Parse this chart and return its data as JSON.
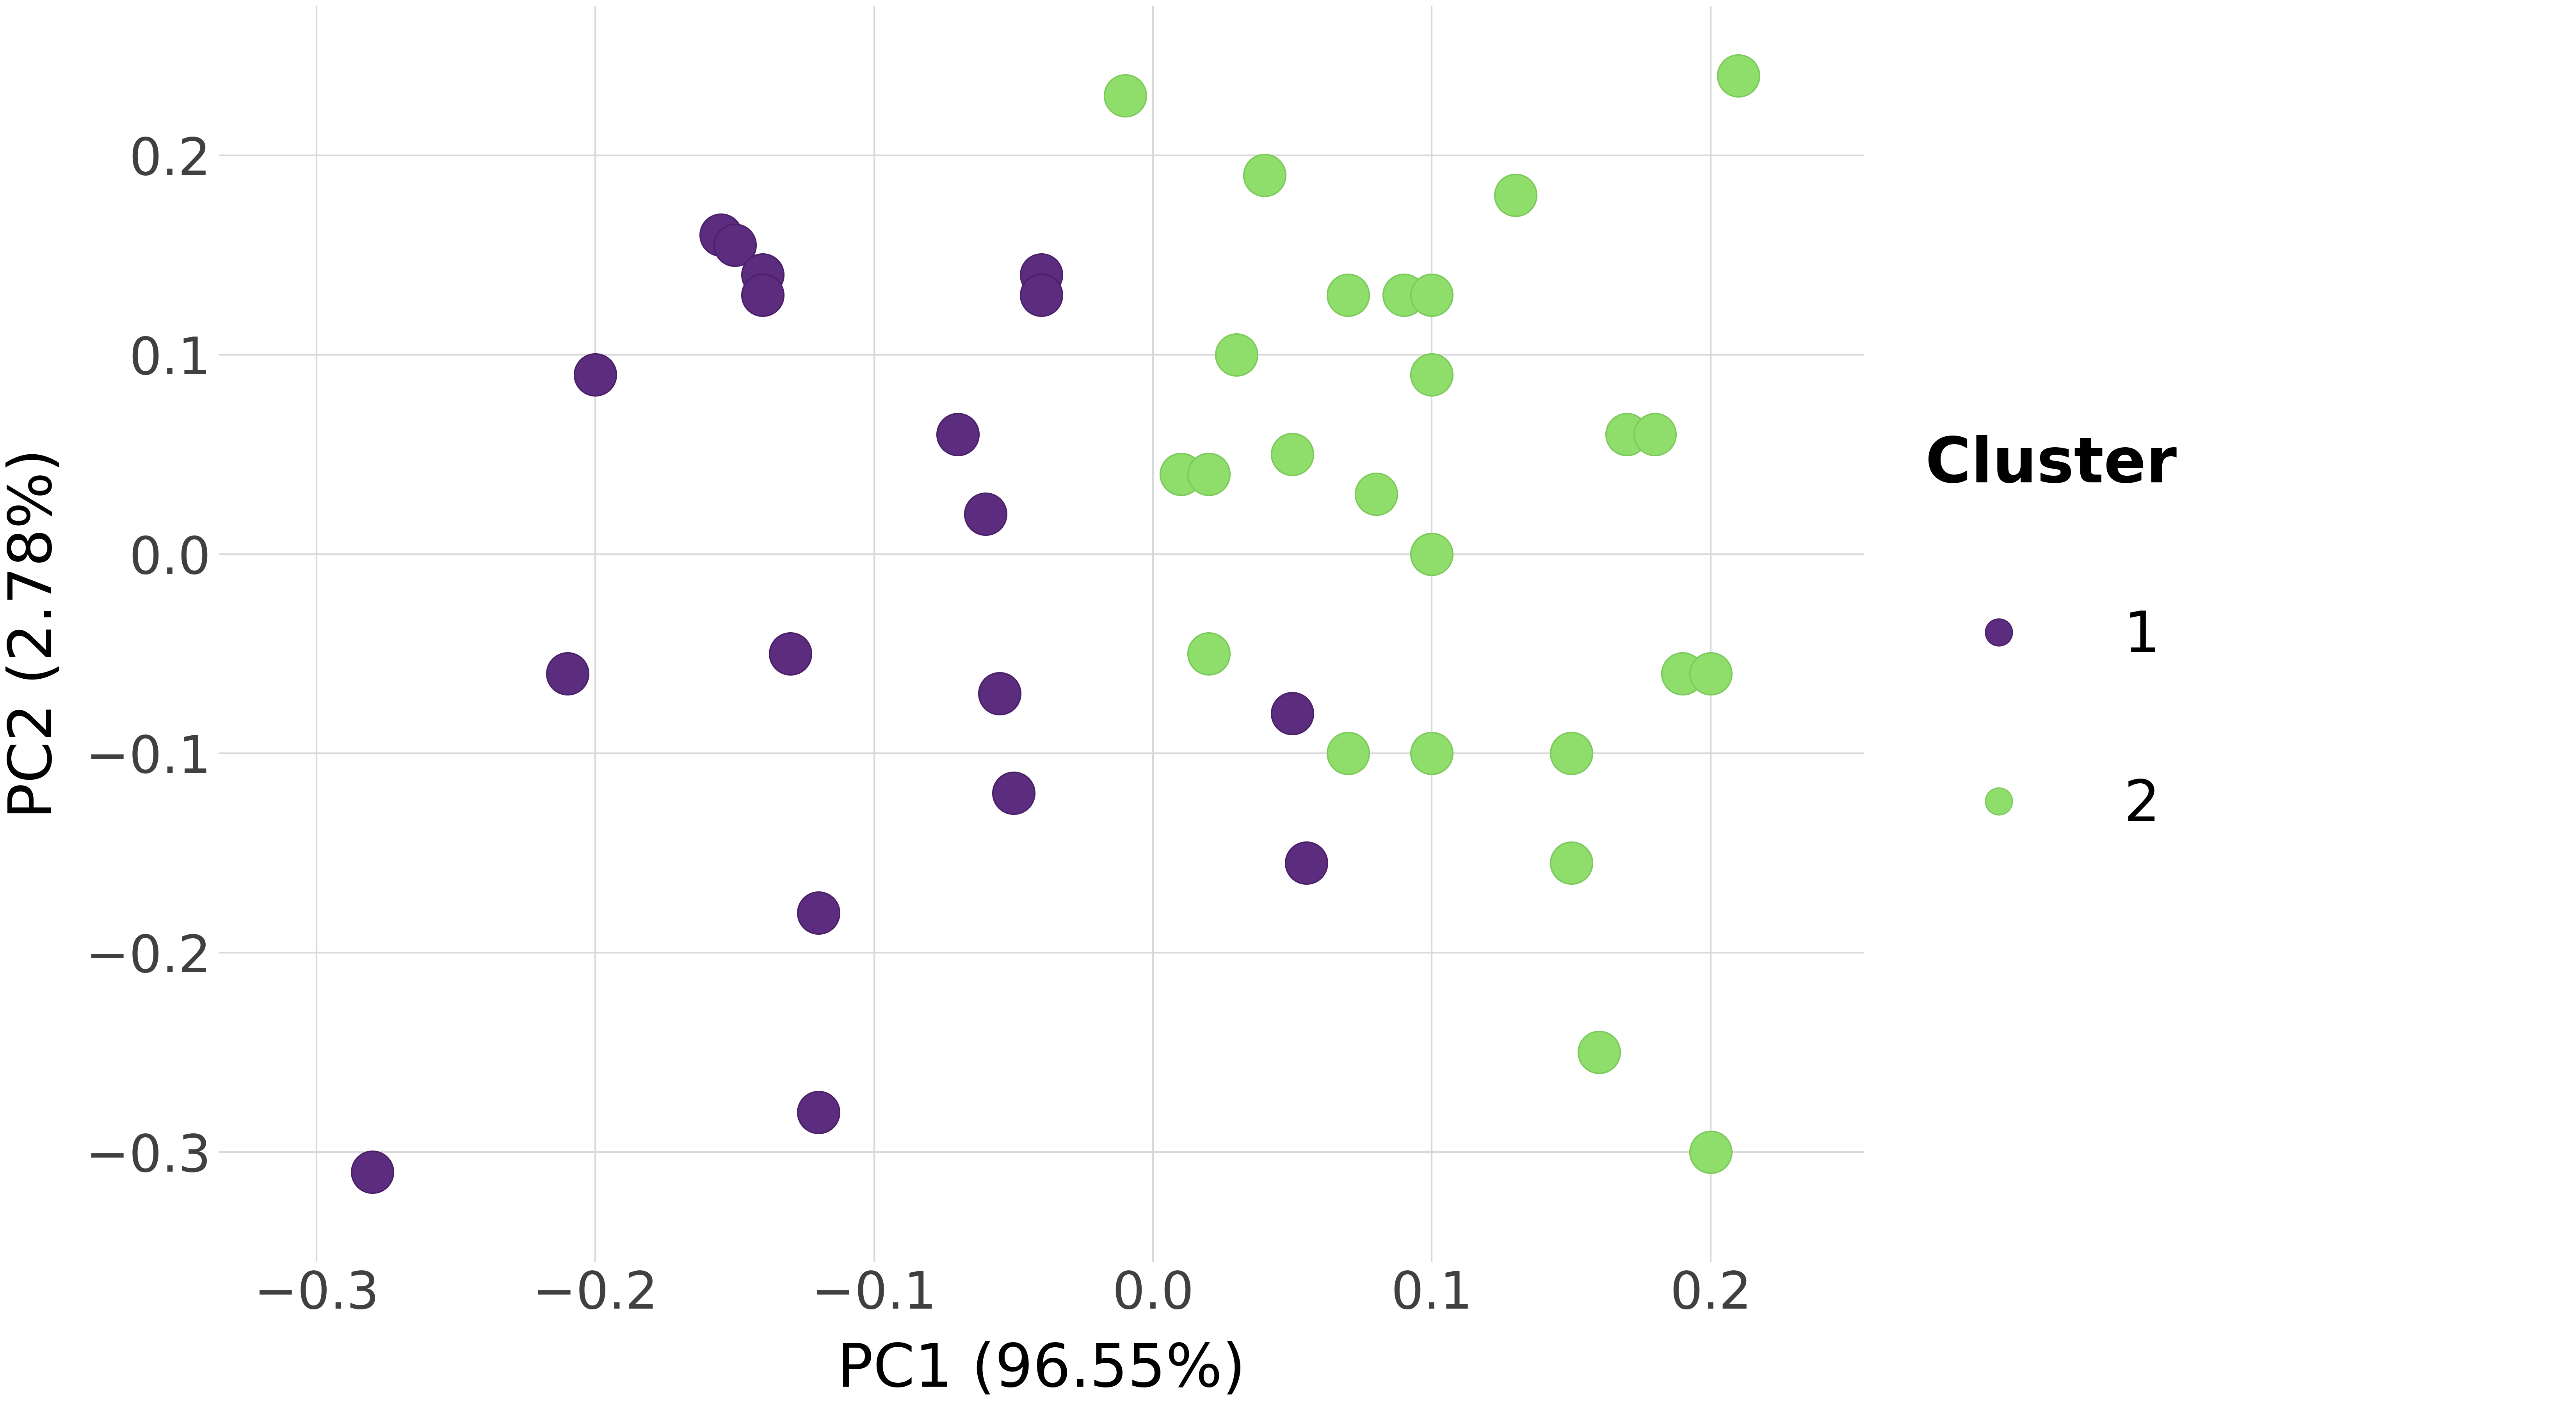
{
  "cluster1_x": [
    -0.28,
    -0.21,
    -0.2,
    -0.155,
    -0.15,
    -0.14,
    -0.14,
    -0.13,
    -0.12,
    -0.12,
    -0.07,
    -0.06,
    -0.055,
    -0.05,
    -0.04,
    -0.04,
    0.05,
    0.055
  ],
  "cluster1_y": [
    -0.31,
    -0.06,
    0.09,
    0.16,
    0.155,
    0.14,
    0.13,
    -0.05,
    -0.18,
    -0.28,
    0.06,
    0.02,
    -0.07,
    -0.12,
    0.14,
    0.13,
    -0.08,
    -0.155
  ],
  "cluster2_x": [
    -0.01,
    0.01,
    0.02,
    0.02,
    0.03,
    0.04,
    0.05,
    0.07,
    0.07,
    0.08,
    0.09,
    0.1,
    0.1,
    0.1,
    0.1,
    0.13,
    0.15,
    0.15,
    0.16,
    0.17,
    0.18,
    0.19,
    0.2,
    0.2,
    0.21
  ],
  "cluster2_y": [
    0.23,
    0.04,
    0.04,
    -0.05,
    0.1,
    0.19,
    0.05,
    -0.1,
    0.13,
    0.03,
    0.13,
    0.13,
    0.09,
    0.0,
    -0.1,
    0.18,
    -0.1,
    -0.155,
    -0.25,
    0.06,
    0.06,
    -0.06,
    -0.06,
    -0.3,
    0.24
  ],
  "cluster1_color": "#5c2d7e",
  "cluster2_color": "#8fdd6b",
  "cluster2_edge_color": "#7ac95a",
  "cluster1_edge_color": "#4a1f68",
  "background_color": "#ffffff",
  "grid_color": "#d8d8d8",
  "xlabel": "PC1 (96.55%)",
  "ylabel": "PC2 (2.78%)",
  "xlim": [
    -0.335,
    0.255
  ],
  "ylim": [
    -0.355,
    0.275
  ],
  "xticks": [
    -0.3,
    -0.2,
    -0.1,
    0.0,
    0.1,
    0.2
  ],
  "yticks": [
    -0.3,
    -0.2,
    -0.1,
    0.0,
    0.1,
    0.2
  ],
  "legend_title": "Cluster",
  "legend_label1": "1",
  "legend_label2": "2",
  "marker_size": 6000,
  "axis_label_fontsize": 110,
  "tick_fontsize": 95,
  "legend_fontsize": 105,
  "legend_title_fontsize": 115,
  "legend_marker_size": 50
}
